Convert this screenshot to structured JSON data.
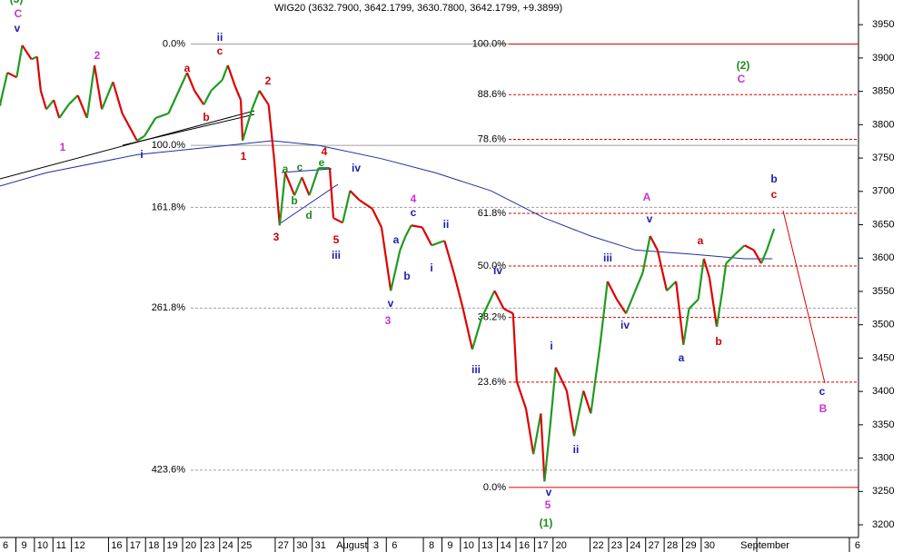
{
  "chart_data": {
    "type": "line",
    "title": "WIG20 (3632.7900, 3642.1799, 3630.7800, 3642.1799, +9.3899)",
    "series": [
      {
        "up_color": "#1f9a1f",
        "down_color": "#dd0000",
        "x": [
          -0.3,
          0.1,
          0.6,
          0.9,
          1.4,
          1.7,
          1.9,
          2.2,
          2.6,
          2.9,
          3.4,
          3.9,
          4.4,
          4.8,
          5.2,
          5.8,
          6.3,
          7.1,
          7.5,
          8.1,
          8.8,
          9.8,
          10.2,
          10.7,
          11.1,
          11.7,
          12.0,
          12.4,
          12.7,
          12.8,
          13.3,
          13.7,
          14.2,
          14.5,
          14.8,
          15.1,
          15.6,
          16.0,
          16.4,
          16.9,
          17.5,
          17.7,
          18.2,
          18.6,
          19.1,
          19.8,
          20.3,
          20.8,
          21.3,
          21.6,
          21.9,
          22.5,
          23.0,
          23.7,
          24.2,
          24.7,
          25.2,
          25.7,
          26.4,
          26.9,
          27.4,
          27.6,
          28.1,
          28.5,
          28.9,
          29.1,
          29.4,
          29.7,
          30.3,
          30.7,
          31.2,
          31.6,
          32.1,
          32.5,
          33.0,
          33.5,
          34.0,
          34.4,
          34.8,
          35.2,
          35.7,
          36.2,
          36.6,
          36.9,
          37.4,
          37.7,
          38.0,
          38.4,
          38.7,
          38.9,
          39.4,
          39.9,
          40.4,
          40.8,
          41.1,
          41.5
        ],
        "values": [
          3830,
          3878,
          3871,
          3919,
          3898,
          3902,
          3851,
          3823,
          3837,
          3810,
          3830,
          3844,
          3810,
          3889,
          3823,
          3864,
          3817,
          3776,
          3783,
          3810,
          3817,
          3878,
          3851,
          3830,
          3851,
          3867,
          3889,
          3857,
          3837,
          3776,
          3823,
          3851,
          3830,
          3749,
          3649,
          3728,
          3694,
          3721,
          3694,
          3735,
          3735,
          3660,
          3653,
          3701,
          3687,
          3674,
          3646,
          3551,
          3612,
          3633,
          3649,
          3646,
          3619,
          3626,
          3578,
          3524,
          3463,
          3510,
          3551,
          3524,
          3517,
          3415,
          3374,
          3306,
          3367,
          3265,
          3347,
          3436,
          3401,
          3333,
          3401,
          3367,
          3470,
          3565,
          3538,
          3517,
          3551,
          3578,
          3633,
          3612,
          3551,
          3565,
          3470,
          3524,
          3538,
          3599,
          3571,
          3497,
          3551,
          3592,
          3606,
          3619,
          3612,
          3592,
          3612,
          3644
        ]
      },
      {
        "color": "#2030a0",
        "x": [
          -0.3,
          2.2,
          7.1,
          12.0,
          14.4,
          16.9,
          20.3,
          23.2,
          26.2,
          29.1,
          31.6,
          34.0,
          37.0,
          39.9,
          41.4
        ],
        "values": [
          3708,
          3728,
          3755,
          3769,
          3776,
          3769,
          3749,
          3728,
          3701,
          3660,
          3633,
          3612,
          3606,
          3599,
          3599
        ]
      }
    ],
    "xlim": [
      -0.3,
      46.05
    ],
    "xticks": [
      {
        "value": 0,
        "label": "6"
      },
      {
        "value": 1,
        "label": "9"
      },
      {
        "value": 2,
        "label": "10"
      },
      {
        "value": 3,
        "label": "11"
      },
      {
        "value": 4,
        "label": "12"
      },
      {
        "value": 6,
        "label": "16"
      },
      {
        "value": 7,
        "label": "17"
      },
      {
        "value": 8,
        "label": "18"
      },
      {
        "value": 9,
        "label": "19"
      },
      {
        "value": 10,
        "label": "20"
      },
      {
        "value": 11,
        "label": "23"
      },
      {
        "value": 12,
        "label": "24"
      },
      {
        "value": 13,
        "label": "25"
      },
      {
        "value": 15,
        "label": "27"
      },
      {
        "value": 16,
        "label": "30"
      },
      {
        "value": 17,
        "label": "31"
      },
      {
        "value": 18.7,
        "label": "August"
      },
      {
        "value": 20,
        "label": "3"
      },
      {
        "value": 21,
        "label": "6"
      },
      {
        "value": 23,
        "label": "8"
      },
      {
        "value": 24,
        "label": "9"
      },
      {
        "value": 25,
        "label": "10"
      },
      {
        "value": 26,
        "label": "13"
      },
      {
        "value": 27,
        "label": "14"
      },
      {
        "value": 28,
        "label": "16"
      },
      {
        "value": 29,
        "label": "17"
      },
      {
        "value": 30,
        "label": "20"
      },
      {
        "value": 32,
        "label": "22"
      },
      {
        "value": 33,
        "label": "23"
      },
      {
        "value": 34,
        "label": "24"
      },
      {
        "value": 35,
        "label": "27"
      },
      {
        "value": 36,
        "label": "28"
      },
      {
        "value": 37,
        "label": "29"
      },
      {
        "value": 38,
        "label": "30"
      },
      {
        "value": 41,
        "label": "September"
      },
      {
        "value": 46,
        "label": "6"
      }
    ],
    "ylim": [
      3181,
      3987
    ],
    "yticks": [
      3200,
      3250,
      3300,
      3350,
      3400,
      3450,
      3500,
      3550,
      3600,
      3650,
      3700,
      3750,
      3800,
      3850,
      3900,
      3950
    ],
    "fib_left": {
      "color": "#a0a0a0",
      "levels": [
        {
          "label": "0.0%",
          "value": 3921
        },
        {
          "label": "100.0%",
          "value": 3769
        },
        {
          "label": "161.8%",
          "value": 3676
        },
        {
          "label": "261.8%",
          "value": 3525
        },
        {
          "label": "423.6%",
          "value": 3282
        }
      ]
    },
    "fib_right": {
      "color": "#dd0000",
      "levels": [
        {
          "label": "100.0%",
          "value": 3921
        },
        {
          "label": "88.6%",
          "value": 3845
        },
        {
          "label": "78.6%",
          "value": 3778
        },
        {
          "label": "61.8%",
          "value": 3667
        },
        {
          "label": "50.0%",
          "value": 3588
        },
        {
          "label": "38.2%",
          "value": 3511
        },
        {
          "label": "23.6%",
          "value": 3414
        },
        {
          "label": "0.0%",
          "value": 3256
        }
      ]
    },
    "annotations": [
      {
        "text": "(3)",
        "color": "#1f8a1f"
      },
      {
        "text": "C",
        "color": "#cc33cc"
      },
      {
        "text": "v",
        "color": "#2020b0"
      },
      {
        "text": "1",
        "color": "#cc33cc"
      },
      {
        "text": "2",
        "color": "#cc33cc"
      },
      {
        "text": "i",
        "color": "#2020b0"
      },
      {
        "text": "ii",
        "color": "#2020b0"
      },
      {
        "text": "c",
        "color": "#cc0000"
      },
      {
        "text": "a",
        "color": "#cc0000"
      },
      {
        "text": "b",
        "color": "#cc0000"
      },
      {
        "text": "1",
        "color": "#cc0000"
      },
      {
        "text": "2",
        "color": "#cc0000"
      },
      {
        "text": "3",
        "color": "#cc0000"
      },
      {
        "text": "4",
        "color": "#cc0000"
      },
      {
        "text": "5",
        "color": "#cc0000"
      },
      {
        "text": "iii",
        "color": "#2020b0"
      },
      {
        "text": "a",
        "color": "#1f8a1f"
      },
      {
        "text": "c",
        "color": "#1f8a1f"
      },
      {
        "text": "e",
        "color": "#1f8a1f"
      },
      {
        "text": "b",
        "color": "#1f8a1f"
      },
      {
        "text": "d",
        "color": "#1f8a1f"
      },
      {
        "text": "iv",
        "color": "#2020b0"
      },
      {
        "text": "a",
        "color": "#2020b0"
      },
      {
        "text": "b",
        "color": "#2020b0"
      },
      {
        "text": "c",
        "color": "#2020b0"
      },
      {
        "text": "4",
        "color": "#cc33cc"
      },
      {
        "text": "v",
        "color": "#2020b0"
      },
      {
        "text": "3",
        "color": "#cc33cc"
      },
      {
        "text": "ii",
        "color": "#2020b0"
      },
      {
        "text": "i",
        "color": "#2020b0"
      },
      {
        "text": "iii",
        "color": "#2020b0"
      },
      {
        "text": "iv",
        "color": "#2020b0"
      },
      {
        "text": "i",
        "color": "#2020b0"
      },
      {
        "text": "ii",
        "color": "#2020b0"
      },
      {
        "text": "v",
        "color": "#2020b0"
      },
      {
        "text": "5",
        "color": "#cc33cc"
      },
      {
        "text": "(1)",
        "color": "#1f8a1f"
      },
      {
        "text": "iii",
        "color": "#2020b0"
      },
      {
        "text": "iv",
        "color": "#2020b0"
      },
      {
        "text": "A",
        "color": "#cc33cc"
      },
      {
        "text": "v",
        "color": "#2020b0"
      },
      {
        "text": "a",
        "color": "#cc0000"
      },
      {
        "text": "a",
        "color": "#2020b0"
      },
      {
        "text": "b",
        "color": "#cc0000"
      },
      {
        "text": "(2)",
        "color": "#1f8a1f"
      },
      {
        "text": "C",
        "color": "#cc33cc"
      },
      {
        "text": "b",
        "color": "#2020b0"
      },
      {
        "text": "c",
        "color": "#cc0000"
      },
      {
        "text": "c",
        "color": "#2020b0"
      },
      {
        "text": "B",
        "color": "#cc33cc"
      }
    ]
  }
}
